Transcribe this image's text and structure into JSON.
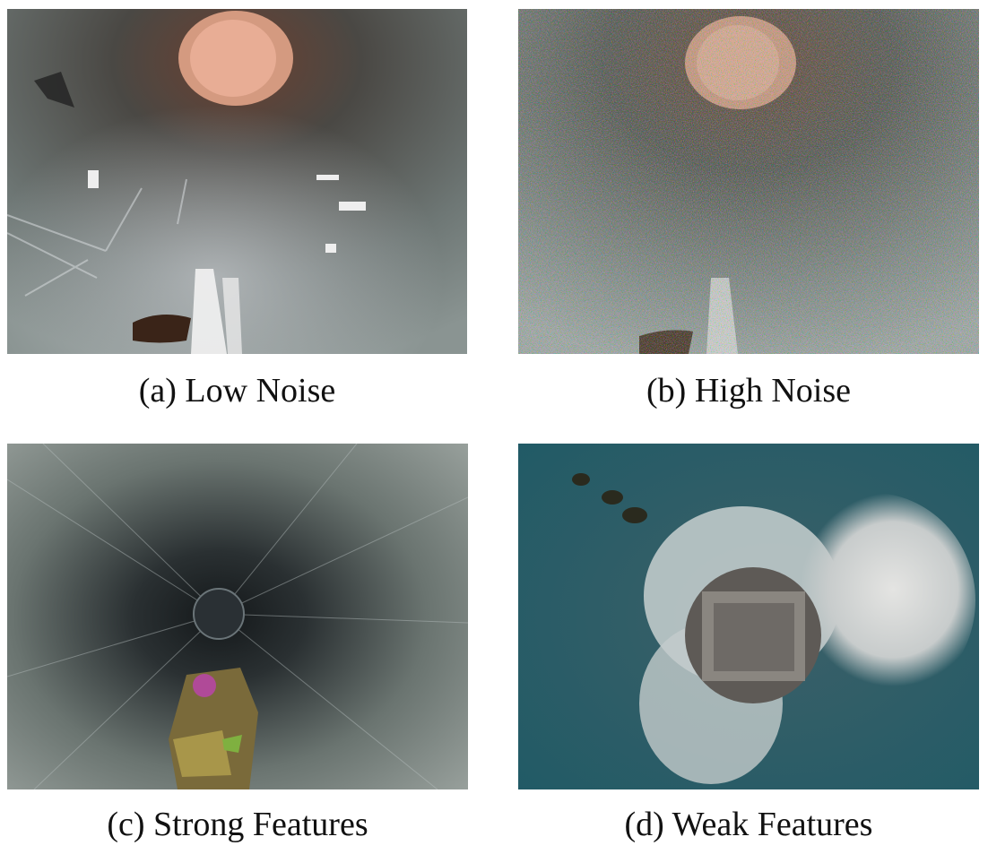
{
  "panels": [
    {
      "id": "a",
      "caption": "(a) Low Noise"
    },
    {
      "id": "b",
      "caption": "(b) High Noise"
    },
    {
      "id": "c",
      "caption": "(c) Strong Features"
    },
    {
      "id": "d",
      "caption": "(d) Weak Features"
    }
  ]
}
